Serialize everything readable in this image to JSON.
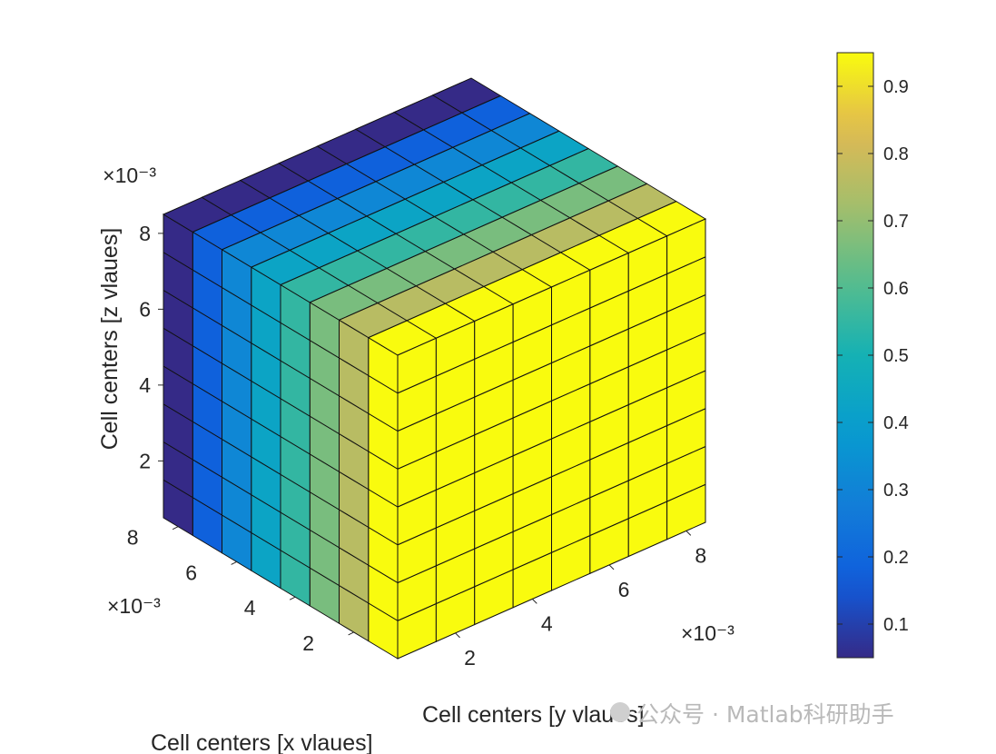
{
  "chart_data": {
    "type": "voxel-cube",
    "grid_size": [
      8,
      8,
      8
    ],
    "cell_values_along_x": [
      0.05,
      0.18,
      0.31,
      0.43,
      0.55,
      0.66,
      0.76,
      0.95
    ],
    "z_ticks": [
      "2",
      "4",
      "6",
      "8"
    ],
    "z_exponent": "×10⁻³",
    "x_ticks": [
      "2",
      "4",
      "6",
      "8"
    ],
    "x_exponent": "×10⁻³",
    "y_ticks": [
      "2",
      "4",
      "6",
      "8"
    ],
    "y_exponent": "×10⁻³",
    "xlabel": "Cell centers [x vlaues]",
    "ylabel": "Cell centers [y vlaues]",
    "zlabel": "Cell centers [z vlaues]",
    "colorbar": {
      "range": [
        0.05,
        0.95
      ],
      "ticks": [
        "0.1",
        "0.2",
        "0.3",
        "0.4",
        "0.5",
        "0.6",
        "0.7",
        "0.8",
        "0.9"
      ],
      "colormap": "parula"
    }
  },
  "watermark": "公众号 · Matlab科研助手"
}
